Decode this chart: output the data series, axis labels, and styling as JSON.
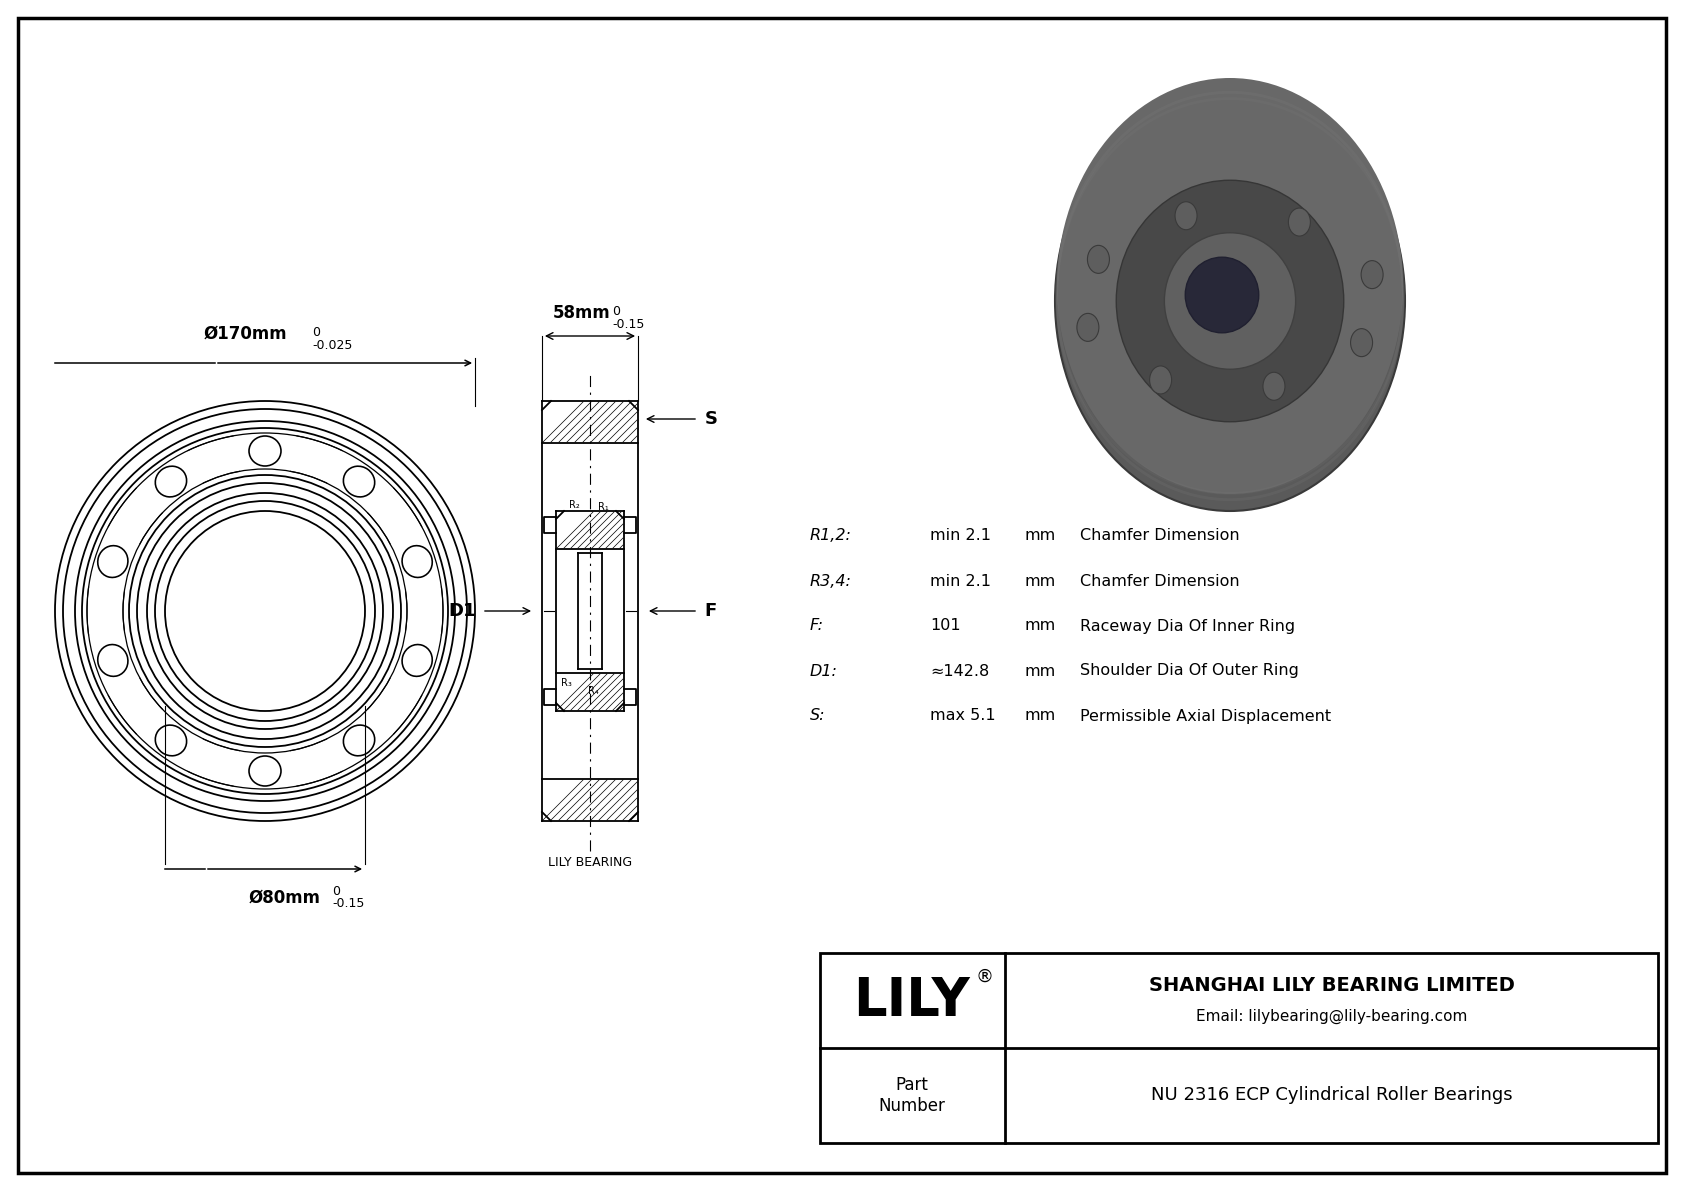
{
  "bg_color": "#ffffff",
  "border_color": "#000000",
  "drawing_color": "#000000",
  "outer_diameter_label": "Ø170mm",
  "outer_diameter_tol": "-0.025",
  "outer_diameter_tol_upper": "0",
  "inner_diameter_label": "Ø80mm",
  "inner_diameter_tol": "-0.15",
  "inner_diameter_tol_upper": "0",
  "width_label": "58mm",
  "width_tol": "-0.15",
  "width_tol_upper": "0",
  "specs": [
    {
      "param": "R1,2:",
      "value": "min 2.1",
      "unit": "mm",
      "desc": "Chamfer Dimension"
    },
    {
      "param": "R3,4:",
      "value": "min 2.1",
      "unit": "mm",
      "desc": "Chamfer Dimension"
    },
    {
      "param": "F:",
      "value": "101",
      "unit": "mm",
      "desc": "Raceway Dia Of Inner Ring"
    },
    {
      "param": "D1:",
      "value": "≈142.8",
      "unit": "mm",
      "desc": "Shoulder Dia Of Outer Ring"
    },
    {
      "param": "S:",
      "value": "max 5.1",
      "unit": "mm",
      "desc": "Permissible Axial Displacement"
    }
  ],
  "company_name": "SHANGHAI LILY BEARING LIMITED",
  "company_email": "Email: lilybearing@lily-bearing.com",
  "brand": "LILY",
  "part_label": "Part\nNumber",
  "part_number": "NU 2316 ECP Cylindrical Roller Bearings",
  "lily_bearing_label": "LILY BEARING",
  "label_D1": "D1",
  "label_F": "F",
  "label_S": "S",
  "label_R1": "R₁",
  "label_R2": "R₂",
  "label_R3": "R₃",
  "label_R4": "R₄"
}
